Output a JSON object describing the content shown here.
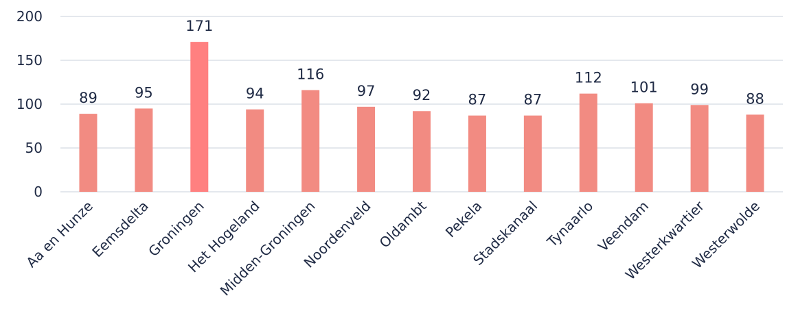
{
  "chart_data": {
    "type": "bar",
    "title": "",
    "xlabel": "",
    "ylabel": "",
    "ylim": [
      0,
      200
    ],
    "yticks": [
      0,
      50,
      100,
      150,
      200
    ],
    "grid": true,
    "categories": [
      "Aa en Hunze",
      "Eemsdelta",
      "Groningen",
      "Het Hogeland",
      "Midden-Groningen",
      "Noordenveld",
      "Oldambt",
      "Pekela",
      "Stadskanaal",
      "Tynaarlo",
      "Veendam",
      "Westerkwartier",
      "Westerwolde"
    ],
    "values": [
      89,
      95,
      171,
      94,
      116,
      97,
      92,
      87,
      87,
      112,
      101,
      99,
      88
    ],
    "colors": {
      "bar": "#f28b82",
      "highlight_bar": "#ff8080",
      "grid": "#d4d9e2",
      "text": "#1f2a44"
    },
    "highlight_category": "Groningen"
  }
}
